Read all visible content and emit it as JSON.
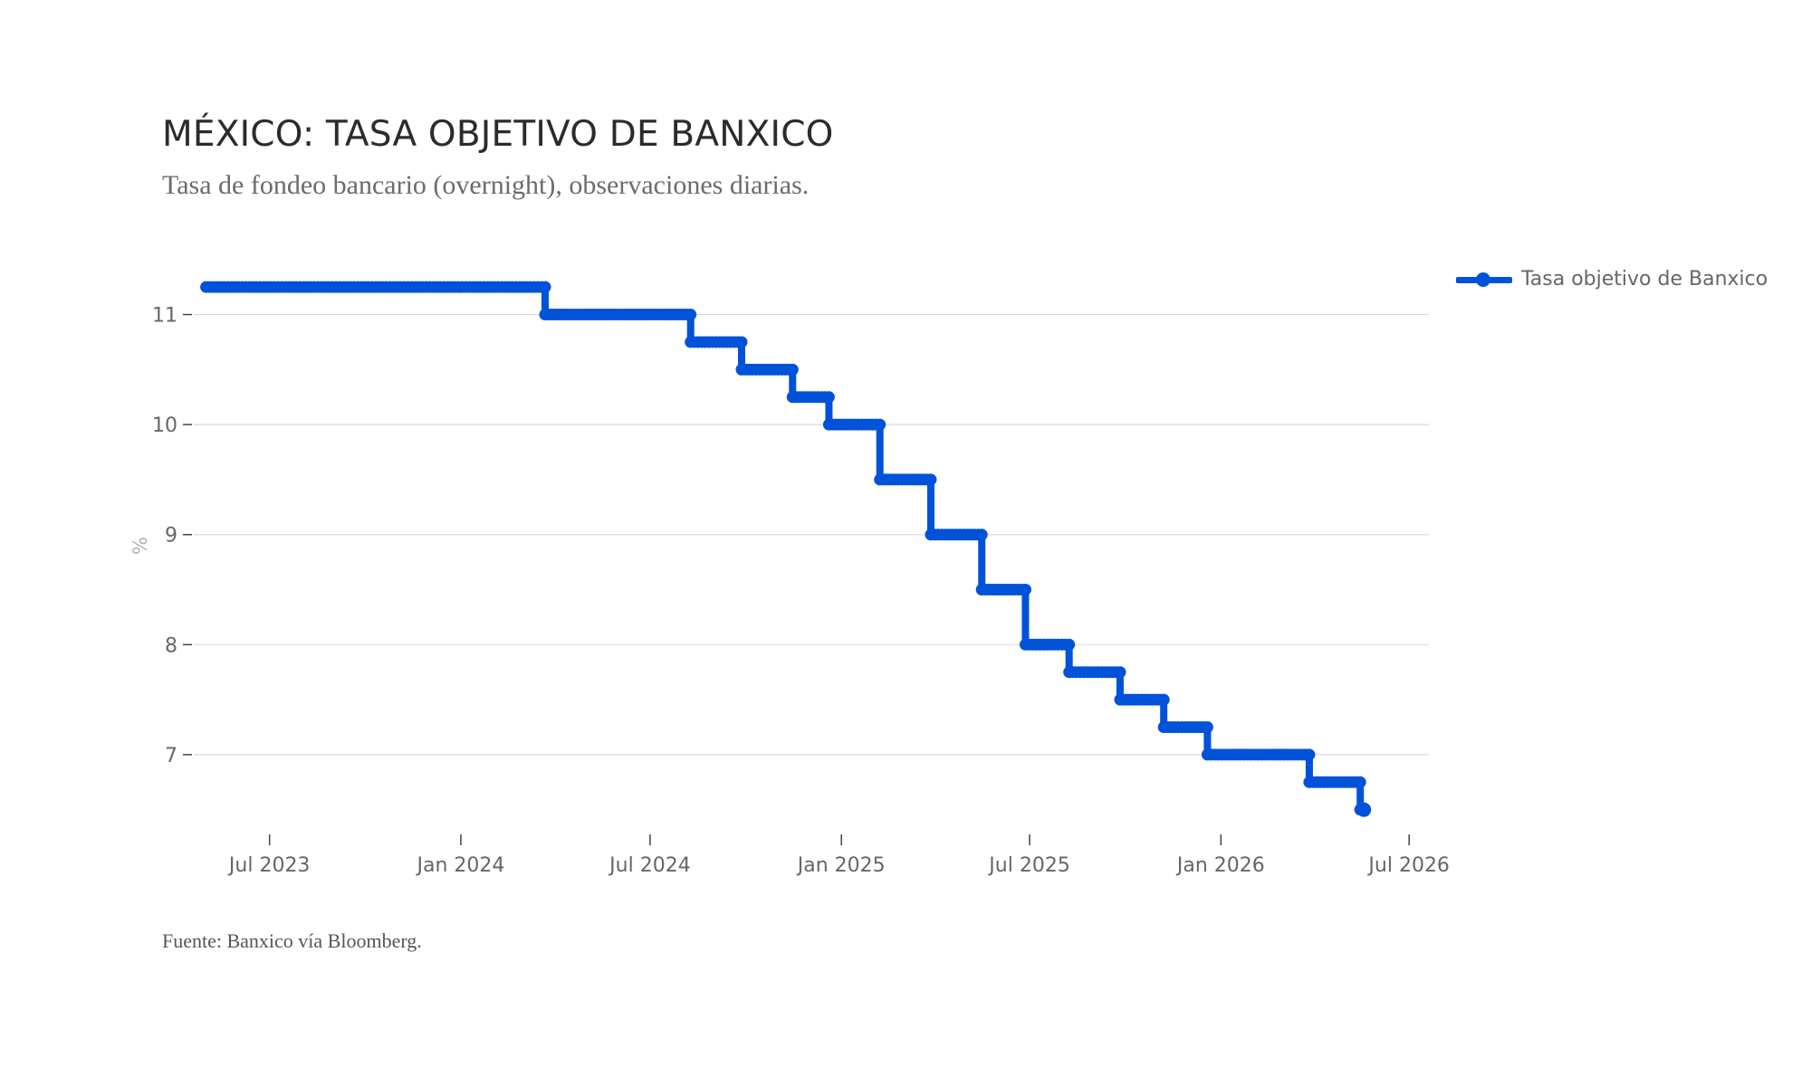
{
  "title": "MÉXICO: TASA OBJETIVO DE BANXICO",
  "subtitle": "Tasa de fondeo bancario (overnight), observaciones diarias.",
  "source": "Fuente: Banxico vía Bloomberg.",
  "colors": {
    "series": "#0052d9",
    "grid": "#d9d9d9",
    "text": "#666666"
  },
  "chart_data": {
    "type": "line",
    "ylabel": "%",
    "ylim": [
      6.3,
      11.35
    ],
    "yticks": [
      7,
      8,
      9,
      10,
      11
    ],
    "xlim": [
      "2023-04-20",
      "2026-07-20"
    ],
    "xticks": [
      {
        "date": "2023-07-01",
        "label": "Jul 2023"
      },
      {
        "date": "2024-01-01",
        "label": "Jan 2024"
      },
      {
        "date": "2024-07-01",
        "label": "Jul 2024"
      },
      {
        "date": "2025-01-01",
        "label": "Jan 2025"
      },
      {
        "date": "2025-07-01",
        "label": "Jul 2025"
      },
      {
        "date": "2026-01-01",
        "label": "Jan 2026"
      },
      {
        "date": "2026-07-01",
        "label": "Jul 2026"
      }
    ],
    "grid": true,
    "legend_position": "top-right",
    "series": [
      {
        "name": "Tasa objetivo de Banxico",
        "step": true,
        "points": [
          {
            "date": "2023-05-01",
            "value": 11.25
          },
          {
            "date": "2024-03-22",
            "value": 11.0
          },
          {
            "date": "2024-08-09",
            "value": 10.75
          },
          {
            "date": "2024-09-27",
            "value": 10.5
          },
          {
            "date": "2024-11-15",
            "value": 10.25
          },
          {
            "date": "2024-12-20",
            "value": 10.0
          },
          {
            "date": "2025-02-07",
            "value": 9.5
          },
          {
            "date": "2025-03-28",
            "value": 9.0
          },
          {
            "date": "2025-05-16",
            "value": 8.5
          },
          {
            "date": "2025-06-27",
            "value": 8.0
          },
          {
            "date": "2025-08-08",
            "value": 7.75
          },
          {
            "date": "2025-09-26",
            "value": 7.5
          },
          {
            "date": "2025-11-07",
            "value": 7.25
          },
          {
            "date": "2025-12-19",
            "value": 7.0
          },
          {
            "date": "2026-03-27",
            "value": 6.75
          },
          {
            "date": "2026-05-15",
            "value": 6.5
          }
        ],
        "end_date": "2026-05-15"
      }
    ]
  }
}
